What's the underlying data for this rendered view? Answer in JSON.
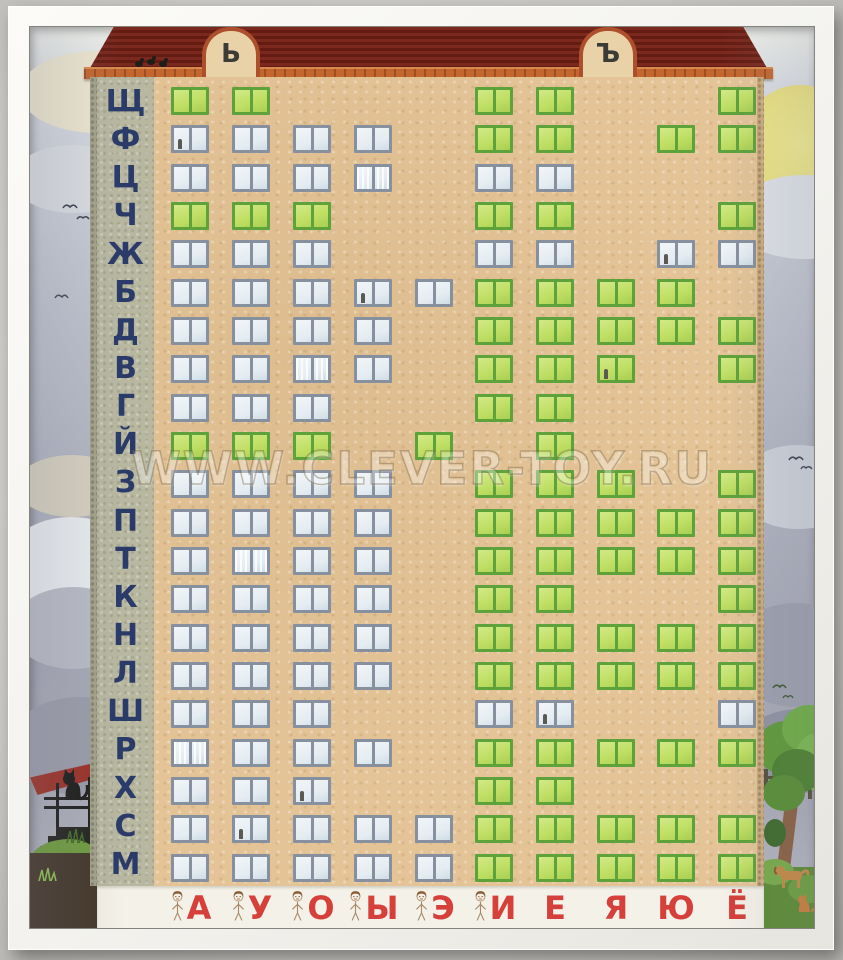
{
  "watermark": "WWW.CLEVER-TOY.RU",
  "roof": {
    "left_dormer": "Ь",
    "right_dormer": "Ъ"
  },
  "rows": [
    {
      "letter": "Щ",
      "windows": "gg...gg..g"
    },
    {
      "letter": "Ф",
      "windows": "wwww.gg.gg"
    },
    {
      "letter": "Ц",
      "windows": "wwww.ww..."
    },
    {
      "letter": "Ч",
      "windows": "ggg..gg..g"
    },
    {
      "letter": "Ж",
      "windows": "www..ww.ww"
    },
    {
      "letter": "Б",
      "windows": "wwwwwgggg."
    },
    {
      "letter": "Д",
      "windows": "wwww.ggggg"
    },
    {
      "letter": "В",
      "windows": "wwww.ggg.g"
    },
    {
      "letter": "Г",
      "windows": "www..gg..."
    },
    {
      "letter": "Й",
      "windows": "ggg.g.g..."
    },
    {
      "letter": "З",
      "windows": "wwww.ggg.g"
    },
    {
      "letter": "П",
      "windows": "wwww.ggggg"
    },
    {
      "letter": "Т",
      "windows": "wwww.ggggg"
    },
    {
      "letter": "К",
      "windows": "wwww.gg..g"
    },
    {
      "letter": "Н",
      "windows": "wwww.ggggg"
    },
    {
      "letter": "Л",
      "windows": "wwww.ggggg"
    },
    {
      "letter": "Ш",
      "windows": "www..ww..w"
    },
    {
      "letter": "Р",
      "windows": "wwww.ggggg"
    },
    {
      "letter": "Х",
      "windows": "www..gg..."
    },
    {
      "letter": "С",
      "windows": "wwwwwggggg"
    },
    {
      "letter": "М",
      "windows": "wwwwwggggg"
    }
  ],
  "window_legend": {
    "g": "green-open",
    "w": "white-closed",
    ".": "no-window"
  },
  "vowels": [
    {
      "letter": "А",
      "girl": true
    },
    {
      "letter": "У",
      "girl": true
    },
    {
      "letter": "О",
      "girl": true
    },
    {
      "letter": "Ы",
      "girl": true
    },
    {
      "letter": "Э",
      "girl": true
    },
    {
      "letter": "И",
      "girl": true
    },
    {
      "letter": "Е",
      "girl": false
    },
    {
      "letter": "Я",
      "girl": false
    },
    {
      "letter": "Ю",
      "girl": false
    },
    {
      "letter": "Ё",
      "girl": false
    }
  ],
  "decor": {
    "curtains": [
      [
        3,
        4
      ],
      [
        8,
        3
      ],
      [
        13,
        2
      ],
      [
        18,
        1
      ]
    ],
    "figures": [
      [
        2,
        1
      ],
      [
        5,
        9
      ],
      [
        6,
        4
      ],
      [
        8,
        8
      ],
      [
        17,
        7
      ],
      [
        19,
        3
      ],
      [
        20,
        2
      ]
    ]
  },
  "colors": {
    "green_frame": "#5ea23b",
    "green_fill": "#bfdf63",
    "white_frame": "#87909f",
    "white_fill": "#e5edf2",
    "consonant": "#2a3b69",
    "vowel": "#d5403a",
    "wall": "#e4c497",
    "strip": "#b8b7a0"
  }
}
